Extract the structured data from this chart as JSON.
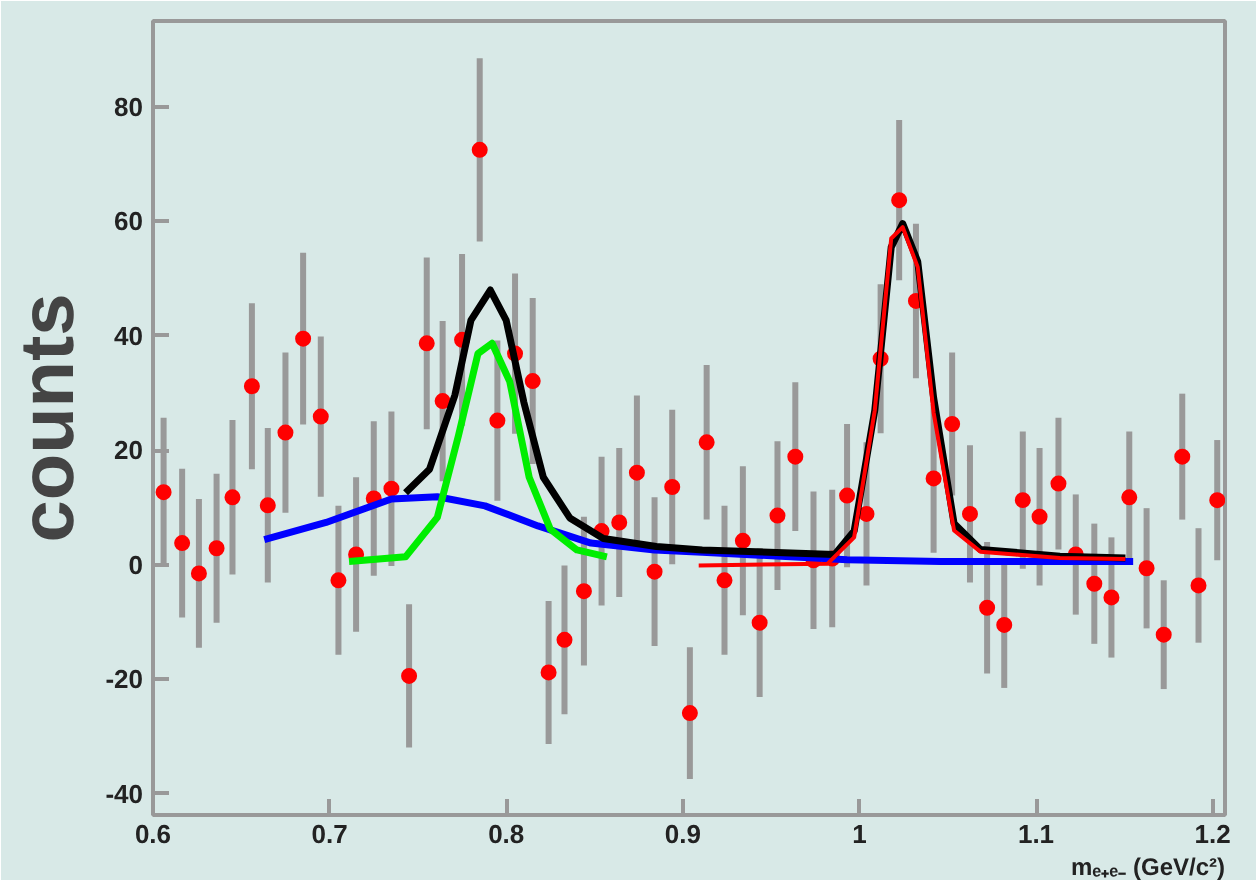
{
  "chart_data": {
    "type": "scatter",
    "xlabel": "mₑ₊ₑ₋ (GeV/c²)",
    "ylabel": "counts",
    "xlim": [
      0.6,
      1.207
    ],
    "ylim": [
      -43.7,
      95
    ],
    "xticks": [
      0.6,
      0.7,
      0.8,
      0.9,
      1,
      1.1,
      1.2
    ],
    "yticks": [
      -40,
      -20,
      0,
      20,
      40,
      60,
      80
    ],
    "series": [
      {
        "marker": "circle",
        "color": "#ff0000",
        "x": [
          0.606,
          0.6165,
          0.626,
          0.636,
          0.645,
          0.656,
          0.665,
          0.675,
          0.685,
          0.695,
          0.705,
          0.715,
          0.725,
          0.735,
          0.745,
          0.755,
          0.764,
          0.775,
          0.785,
          0.795,
          0.805,
          0.815,
          0.824,
          0.833,
          0.844,
          0.854,
          0.864,
          0.874,
          0.884,
          0.894,
          0.904,
          0.9135,
          0.9236,
          0.934,
          0.9435,
          0.9536,
          0.9637,
          0.974,
          0.9846,
          0.993,
          1.004,
          1.012,
          1.0225,
          1.032,
          1.042,
          1.0525,
          1.0626,
          1.0723,
          1.082,
          1.0925,
          1.102,
          1.1127,
          1.1225,
          1.133,
          1.1427,
          1.1528,
          1.1626,
          1.1723,
          1.1828,
          1.192,
          1.2026
        ],
        "values": [
          12.7,
          3.8,
          -1.5,
          2.9,
          11.8,
          31.2,
          10.4,
          23.1,
          39.5,
          25.9,
          -2.7,
          1.8,
          11.6,
          13.3,
          -19.4,
          38.7,
          28.6,
          39.3,
          72.5,
          25.2,
          36.9,
          32.1,
          -18.8,
          -13.1,
          -4.6,
          5.9,
          7.4,
          16.1,
          -1.2,
          13.6,
          -25.9,
          21.4,
          -2.7,
          4.2,
          -10.1,
          8.6,
          18.9,
          0.8,
          1.1,
          12.1,
          8.9,
          36,
          63.7,
          46.1,
          15.1,
          24.6,
          8.9,
          -7.5,
          -10.5,
          11.3,
          8.4,
          14.2,
          1.8,
          -3.3,
          -5.7,
          11.8,
          -0.6,
          -12.2,
          18.9,
          -3.6,
          11.3
        ],
        "errors": [
          13,
          13,
          13,
          13,
          13.5,
          14.5,
          13.5,
          14,
          15,
          14,
          13,
          13.5,
          13.5,
          13.5,
          12.5,
          15,
          14,
          15,
          16,
          14,
          14,
          14.5,
          12.5,
          13,
          13,
          13,
          13,
          13.5,
          13,
          13.5,
          11.5,
          13.5,
          13,
          13,
          13,
          13,
          13,
          12,
          12,
          12.5,
          12.5,
          13,
          14,
          13.5,
          13,
          12.5,
          12,
          11.5,
          11,
          12,
          12,
          11.5,
          10.5,
          10.5,
          10.5,
          11.5,
          10.5,
          9.5,
          11,
          10,
          10.5
        ]
      },
      {
        "type": "line",
        "color": "#0000ff",
        "x": [
          0.663,
          0.698,
          0.735,
          0.761,
          0.788,
          0.818,
          0.848,
          0.884,
          0.911,
          0.993,
          1.046,
          1.155
        ],
        "values": [
          4.4,
          7.4,
          11.5,
          11.9,
          10.3,
          6.8,
          3.8,
          2.6,
          2.2,
          0.9,
          0.6,
          0.6
        ]
      },
      {
        "type": "line",
        "color": "#00ee00",
        "x": [
          0.711,
          0.743,
          0.761,
          0.773,
          0.784,
          0.792,
          0.802,
          0.813,
          0.825,
          0.84,
          0.857
        ],
        "values": [
          0.6,
          1.4,
          8.3,
          22.6,
          36.9,
          38.7,
          32,
          15.3,
          6.2,
          2.6,
          1.4
        ]
      },
      {
        "type": "line",
        "color": "#000000",
        "x": [
          0.743,
          0.7566,
          0.771,
          0.78,
          0.791,
          0.8,
          0.81,
          0.821,
          0.836,
          0.855,
          0.885,
          0.911,
          0.986,
          0.997,
          1.0087,
          1.018,
          1.0245,
          1.033,
          1.042,
          1.0536,
          1.0685,
          1.1135,
          1.1506
        ],
        "values": [
          12.6,
          16.7,
          29.7,
          42.7,
          48,
          42.7,
          28.4,
          15.3,
          8.2,
          4.6,
          3.2,
          2.6,
          1.8,
          5.9,
          27,
          55.5,
          59.6,
          53,
          29.2,
          7.2,
          2.7,
          1.5,
          1.2
        ]
      },
      {
        "type": "line",
        "color": "#ff0000",
        "x": [
          0.909,
          0.982,
          0.997,
          1.0087,
          1.018,
          1.0245,
          1.033,
          1.042,
          1.0536,
          1.0685,
          1.1135,
          1.1506
        ],
        "values": [
          -0.1,
          0.2,
          4.8,
          27,
          57,
          59,
          52,
          26.6,
          6,
          2.3,
          1.2,
          1
        ]
      }
    ]
  }
}
